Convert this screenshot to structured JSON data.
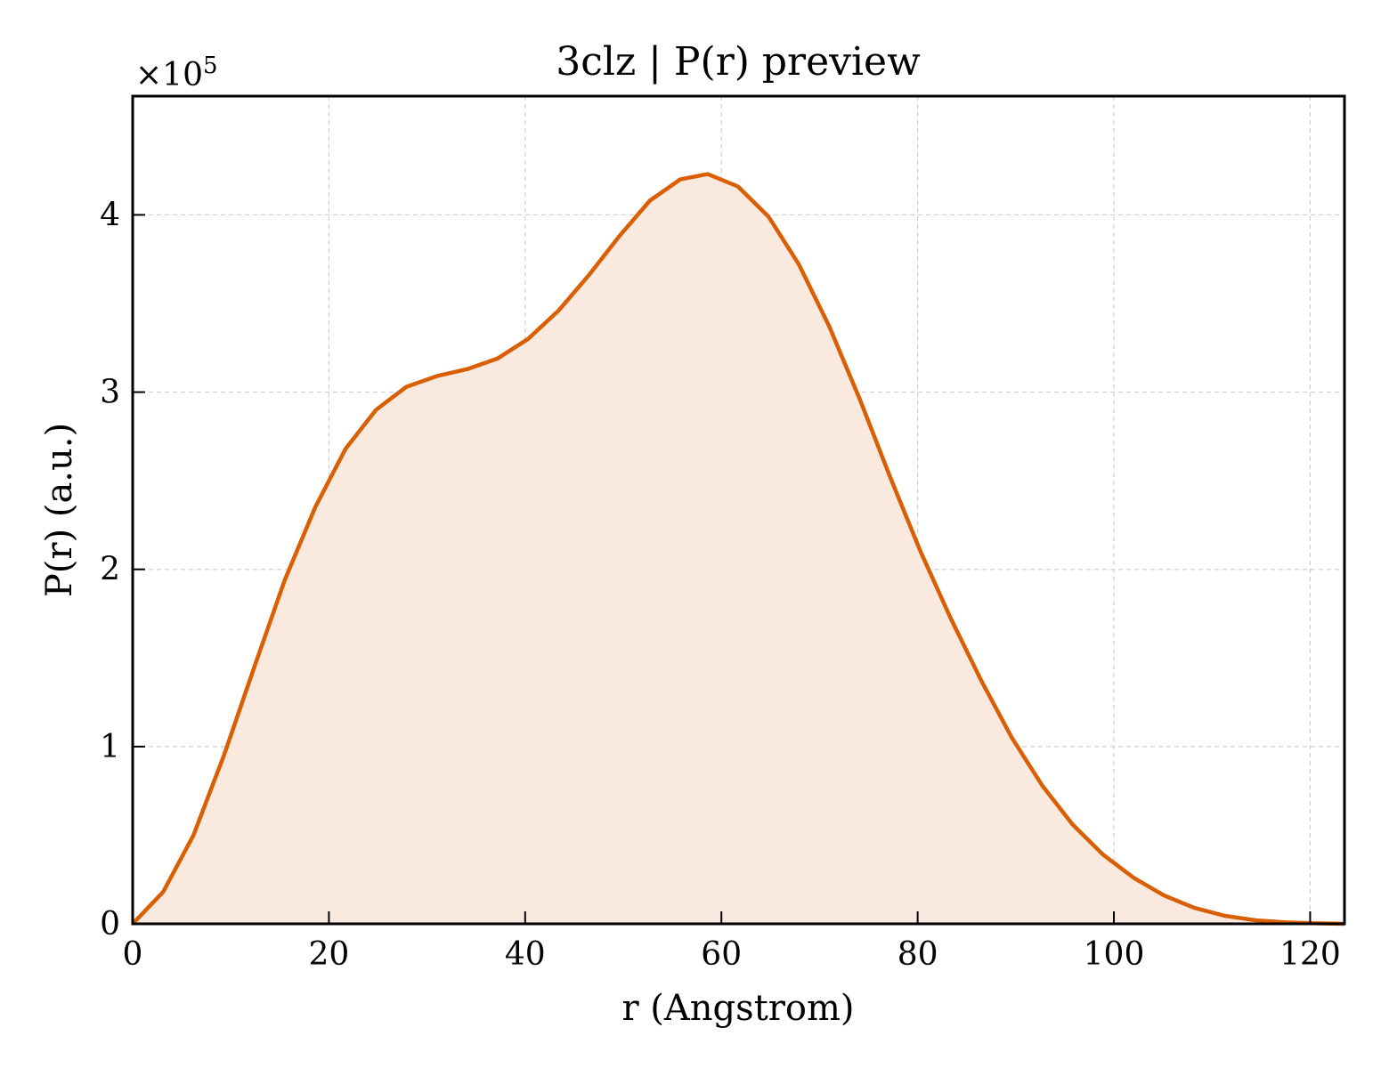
{
  "chart_data": {
    "type": "area",
    "title": "3clz | P(r) preview",
    "xlabel": "r (Angstrom)",
    "ylabel": "P(r) (a.u.)",
    "y_multiplier_text": "×10",
    "y_multiplier_exp": "5",
    "xlim": [
      0,
      123.5
    ],
    "ylim": [
      0,
      4.67
    ],
    "xticks": [
      0,
      20,
      40,
      60,
      80,
      100,
      120
    ],
    "yticks": [
      0,
      1,
      2,
      3,
      4
    ],
    "grid": true,
    "series": [
      {
        "color": "#d95f02",
        "fill_color": "#fae9de",
        "x": [
          0,
          3.1,
          6.2,
          9.3,
          12.4,
          15.5,
          18.6,
          21.7,
          24.8,
          27.9,
          31.0,
          34.1,
          37.2,
          40.3,
          43.4,
          46.5,
          49.6,
          52.7,
          55.8,
          58.6,
          61.7,
          64.8,
          67.9,
          71.0,
          74.1,
          77.2,
          80.3,
          83.4,
          86.5,
          89.6,
          92.7,
          95.8,
          98.9,
          102.0,
          105.1,
          108.2,
          111.3,
          114.4,
          117.5,
          120.6,
          123.5
        ],
        "values": [
          0,
          0.18,
          0.5,
          0.95,
          1.45,
          1.94,
          2.35,
          2.68,
          2.9,
          3.03,
          3.09,
          3.13,
          3.19,
          3.3,
          3.46,
          3.66,
          3.88,
          4.08,
          4.2,
          4.23,
          4.16,
          3.99,
          3.72,
          3.37,
          2.96,
          2.52,
          2.1,
          1.72,
          1.37,
          1.05,
          0.78,
          0.56,
          0.39,
          0.26,
          0.16,
          0.09,
          0.045,
          0.02,
          0.008,
          0.003,
          0.0
        ]
      }
    ]
  }
}
